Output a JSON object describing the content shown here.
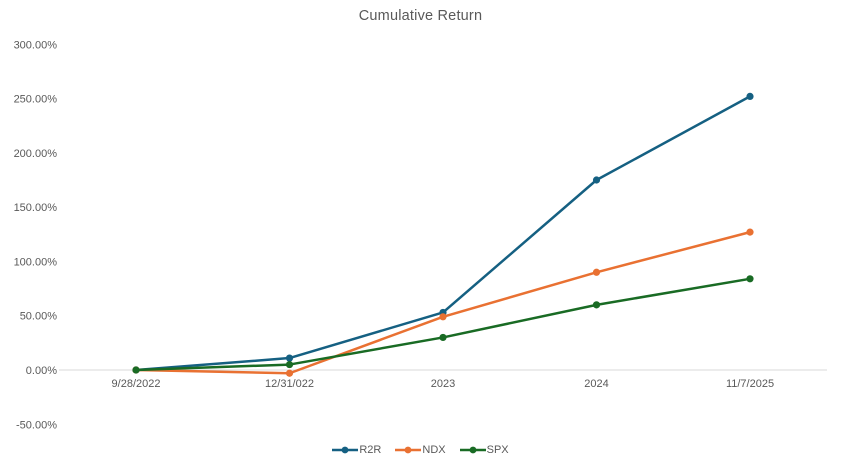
{
  "chart_data": {
    "type": "line",
    "title": "Cumulative Return",
    "xlabel": "",
    "ylabel": "",
    "categories": [
      "9/28/2022",
      "12/31/022",
      "2023",
      "2024",
      "11/7/2025"
    ],
    "series": [
      {
        "name": "R2R",
        "color": "#156082",
        "values": [
          0,
          11,
          53,
          175,
          252
        ]
      },
      {
        "name": "NDX",
        "color": "#E97132",
        "values": [
          0,
          -3,
          49,
          90,
          127
        ]
      },
      {
        "name": "SPX",
        "color": "#196B24",
        "values": [
          0,
          5,
          30,
          60,
          84
        ]
      }
    ],
    "y_ticks": [
      {
        "label": "300.00%",
        "value": 300
      },
      {
        "label": "250.00%",
        "value": 250
      },
      {
        "label": "200.00%",
        "value": 200
      },
      {
        "label": "150.00%",
        "value": 150
      },
      {
        "label": "100.00%",
        "value": 100
      },
      {
        "label": "50.00%",
        "value": 50
      },
      {
        "label": "0.00%",
        "value": 0
      },
      {
        "label": "-50.00%",
        "value": -50
      }
    ],
    "ylim": [
      -50,
      300
    ],
    "grid": false,
    "zero_axis_line": true,
    "legend_position": "bottom",
    "marker": "circle"
  },
  "style": {
    "axis_line_color": "#d9d9d9",
    "tick_text_color": "#595959",
    "title_color": "#595959",
    "background": "#ffffff"
  }
}
